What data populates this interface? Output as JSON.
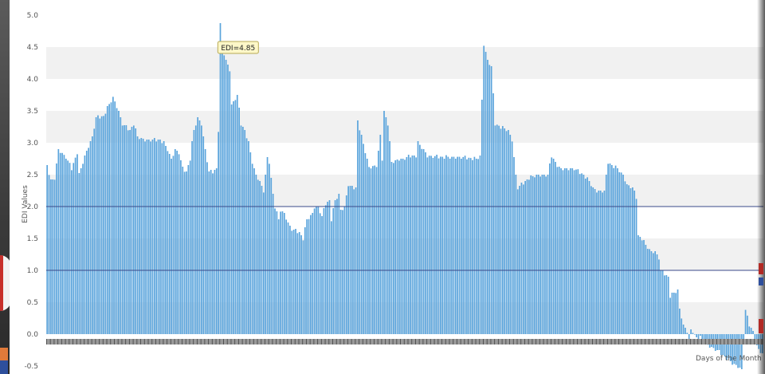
{
  "colors": {
    "bar": "#5aa4dc",
    "bar_edge": "#4d96cf",
    "band": "#f1f1f1",
    "threshold_line": "#3a4a8a",
    "tooltip_bg": "#fdf7c8",
    "tooltip_border": "#b8aa55"
  },
  "chart_data": {
    "type": "bar",
    "xlabel": "Days of the Month",
    "ylabel": "EDI Values",
    "ylim": [
      -0.5,
      5.0
    ],
    "y_ticks": [
      -0.5,
      0.0,
      0.5,
      1.0,
      1.5,
      2.0,
      2.5,
      3.0,
      3.5,
      4.0,
      4.5,
      5.0
    ],
    "y_tick_labels": [
      "-0.5",
      "0.0",
      "0.5",
      "1.0",
      "1.5",
      "2.0",
      "2.5",
      "3.0",
      "3.5",
      "4.0",
      "4.5",
      "5.0"
    ],
    "grid": "alternating horizontal bands",
    "reference_lines": [
      2.0,
      1.0
    ],
    "tooltip": {
      "label": "EDI=4.85",
      "index": 92
    },
    "keypoints": [
      [
        0,
        2.65
      ],
      [
        2,
        2.4
      ],
      [
        4,
        2.45
      ],
      [
        6,
        2.9
      ],
      [
        10,
        2.78
      ],
      [
        13,
        2.6
      ],
      [
        16,
        2.85
      ],
      [
        17,
        2.5
      ],
      [
        20,
        2.8
      ],
      [
        24,
        3.1
      ],
      [
        26,
        3.4
      ],
      [
        30,
        3.42
      ],
      [
        32,
        3.55
      ],
      [
        35,
        3.72
      ],
      [
        38,
        3.5
      ],
      [
        40,
        3.3
      ],
      [
        44,
        3.2
      ],
      [
        46,
        3.3
      ],
      [
        48,
        3.1
      ],
      [
        52,
        3.05
      ],
      [
        60,
        3.05
      ],
      [
        62,
        3.0
      ],
      [
        64,
        2.9
      ],
      [
        66,
        2.75
      ],
      [
        68,
        2.9
      ],
      [
        70,
        2.85
      ],
      [
        72,
        2.6
      ],
      [
        74,
        2.55
      ],
      [
        76,
        2.75
      ],
      [
        77,
        3.0
      ],
      [
        78,
        3.2
      ],
      [
        80,
        3.4
      ],
      [
        82,
        3.3
      ],
      [
        84,
        2.9
      ],
      [
        86,
        2.55
      ],
      [
        88,
        2.55
      ],
      [
        90,
        2.6
      ],
      [
        91,
        3.2
      ],
      [
        92,
        4.85
      ],
      [
        93,
        4.5
      ],
      [
        95,
        4.3
      ],
      [
        97,
        4.15
      ],
      [
        98,
        3.6
      ],
      [
        100,
        3.7
      ],
      [
        101,
        3.75
      ],
      [
        103,
        3.3
      ],
      [
        105,
        3.2
      ],
      [
        107,
        3.0
      ],
      [
        109,
        2.7
      ],
      [
        111,
        2.5
      ],
      [
        113,
        2.4
      ],
      [
        115,
        2.25
      ],
      [
        117,
        2.75
      ],
      [
        118,
        2.7
      ],
      [
        120,
        2.2
      ],
      [
        121,
        2.0
      ],
      [
        123,
        1.8
      ],
      [
        124,
        1.95
      ],
      [
        126,
        1.9
      ],
      [
        128,
        1.75
      ],
      [
        130,
        1.65
      ],
      [
        134,
        1.6
      ],
      [
        136,
        1.5
      ],
      [
        138,
        1.8
      ],
      [
        141,
        1.9
      ],
      [
        142,
        2.0
      ],
      [
        144,
        2.0
      ],
      [
        146,
        1.85
      ],
      [
        148,
        2.05
      ],
      [
        150,
        2.1
      ],
      [
        151,
        1.8
      ],
      [
        153,
        2.1
      ],
      [
        155,
        2.2
      ],
      [
        156,
        1.95
      ],
      [
        158,
        2.0
      ],
      [
        160,
        2.35
      ],
      [
        162,
        2.3
      ],
      [
        164,
        2.3
      ],
      [
        165,
        3.35
      ],
      [
        167,
        3.1
      ],
      [
        170,
        2.75
      ],
      [
        171,
        2.62
      ],
      [
        175,
        2.65
      ],
      [
        177,
        3.1
      ],
      [
        178,
        2.75
      ],
      [
        179,
        3.5
      ],
      [
        181,
        3.3
      ],
      [
        183,
        2.7
      ],
      [
        187,
        2.75
      ],
      [
        189,
        2.75
      ],
      [
        193,
        2.8
      ],
      [
        196,
        2.8
      ],
      [
        197,
        3.0
      ],
      [
        200,
        2.9
      ],
      [
        202,
        2.8
      ],
      [
        210,
        2.78
      ],
      [
        220,
        2.78
      ],
      [
        228,
        2.75
      ],
      [
        230,
        2.8
      ],
      [
        232,
        4.55
      ],
      [
        234,
        4.3
      ],
      [
        236,
        4.2
      ],
      [
        238,
        3.3
      ],
      [
        241,
        3.25
      ],
      [
        245,
        3.2
      ],
      [
        247,
        3.05
      ],
      [
        249,
        2.5
      ],
      [
        250,
        2.3
      ],
      [
        252,
        2.35
      ],
      [
        256,
        2.45
      ],
      [
        260,
        2.5
      ],
      [
        266,
        2.5
      ],
      [
        268,
        2.8
      ],
      [
        270,
        2.7
      ],
      [
        272,
        2.6
      ],
      [
        275,
        2.6
      ],
      [
        280,
        2.6
      ],
      [
        285,
        2.5
      ],
      [
        288,
        2.4
      ],
      [
        290,
        2.3
      ],
      [
        292,
        2.25
      ],
      [
        296,
        2.25
      ],
      [
        298,
        2.7
      ],
      [
        300,
        2.65
      ],
      [
        303,
        2.6
      ],
      [
        306,
        2.5
      ],
      [
        308,
        2.35
      ],
      [
        311,
        2.3
      ],
      [
        313,
        2.15
      ],
      [
        314,
        1.55
      ],
      [
        316,
        1.5
      ],
      [
        318,
        1.4
      ],
      [
        321,
        1.3
      ],
      [
        323,
        1.3
      ],
      [
        325,
        1.2
      ],
      [
        326,
        1.0
      ],
      [
        328,
        0.95
      ],
      [
        330,
        0.9
      ],
      [
        331,
        0.6
      ],
      [
        333,
        0.65
      ],
      [
        335,
        0.7
      ],
      [
        336,
        0.4
      ],
      [
        338,
        0.15
      ],
      [
        340,
        0.05
      ],
      [
        341,
        -0.1
      ],
      [
        342,
        0.05
      ],
      [
        343,
        0.05
      ],
      [
        345,
        -0.05
      ],
      [
        347,
        -0.05
      ],
      [
        350,
        -0.15
      ],
      [
        353,
        -0.2
      ],
      [
        356,
        -0.25
      ],
      [
        360,
        -0.35
      ],
      [
        364,
        -0.45
      ],
      [
        367,
        -0.5
      ],
      [
        369,
        -0.55
      ],
      [
        371,
        0.38
      ],
      [
        373,
        0.15
      ],
      [
        375,
        0.05
      ],
      [
        377,
        -0.2
      ],
      [
        380,
        -0.3
      ]
    ],
    "bar_count": 381
  }
}
